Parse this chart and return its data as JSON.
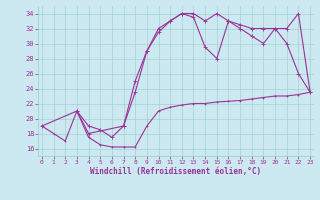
{
  "background_color": "#cce8f0",
  "line_color": "#993399",
  "xlabel": "Windchill (Refroidissement éolien,°C)",
  "xlim": [
    -0.3,
    23.3
  ],
  "ylim": [
    15.0,
    35.0
  ],
  "yticks": [
    16,
    18,
    20,
    22,
    24,
    26,
    28,
    30,
    32,
    34
  ],
  "xticks": [
    0,
    1,
    2,
    3,
    4,
    5,
    6,
    7,
    8,
    9,
    10,
    11,
    12,
    13,
    14,
    15,
    16,
    17,
    18,
    19,
    20,
    21,
    22,
    23
  ],
  "curve1_x": [
    0,
    1,
    2,
    3,
    4,
    5,
    6,
    7,
    8,
    9,
    10,
    11,
    12,
    13,
    14,
    15,
    16,
    17,
    18,
    19,
    20,
    21,
    22,
    23
  ],
  "curve1_y": [
    19.0,
    18.0,
    17.0,
    21.0,
    17.5,
    16.5,
    16.2,
    16.2,
    16.2,
    19.0,
    21.0,
    21.5,
    21.8,
    22.0,
    22.0,
    22.2,
    22.3,
    22.4,
    22.6,
    22.8,
    23.0,
    23.0,
    23.2,
    23.5
  ],
  "curve2_x": [
    0,
    3,
    4,
    5,
    6,
    7,
    8,
    9,
    10,
    11,
    12,
    13,
    14,
    15,
    16,
    17,
    18,
    19,
    20,
    21,
    22,
    23
  ],
  "curve2_y": [
    19.0,
    21.0,
    19.0,
    18.5,
    17.5,
    19.0,
    23.5,
    29.0,
    32.0,
    33.0,
    34.0,
    34.0,
    33.0,
    34.0,
    33.0,
    32.0,
    31.0,
    30.0,
    32.0,
    30.0,
    26.0,
    23.5
  ],
  "curve3_x": [
    3,
    4,
    7,
    8,
    9,
    10,
    11,
    12,
    13,
    14,
    15,
    16,
    17,
    18,
    19,
    20,
    21,
    22,
    23
  ],
  "curve3_y": [
    21.0,
    18.0,
    19.0,
    25.0,
    29.0,
    31.5,
    33.0,
    34.0,
    33.5,
    29.5,
    28.0,
    33.0,
    32.5,
    32.0,
    32.0,
    32.0,
    32.0,
    34.0,
    23.5
  ]
}
